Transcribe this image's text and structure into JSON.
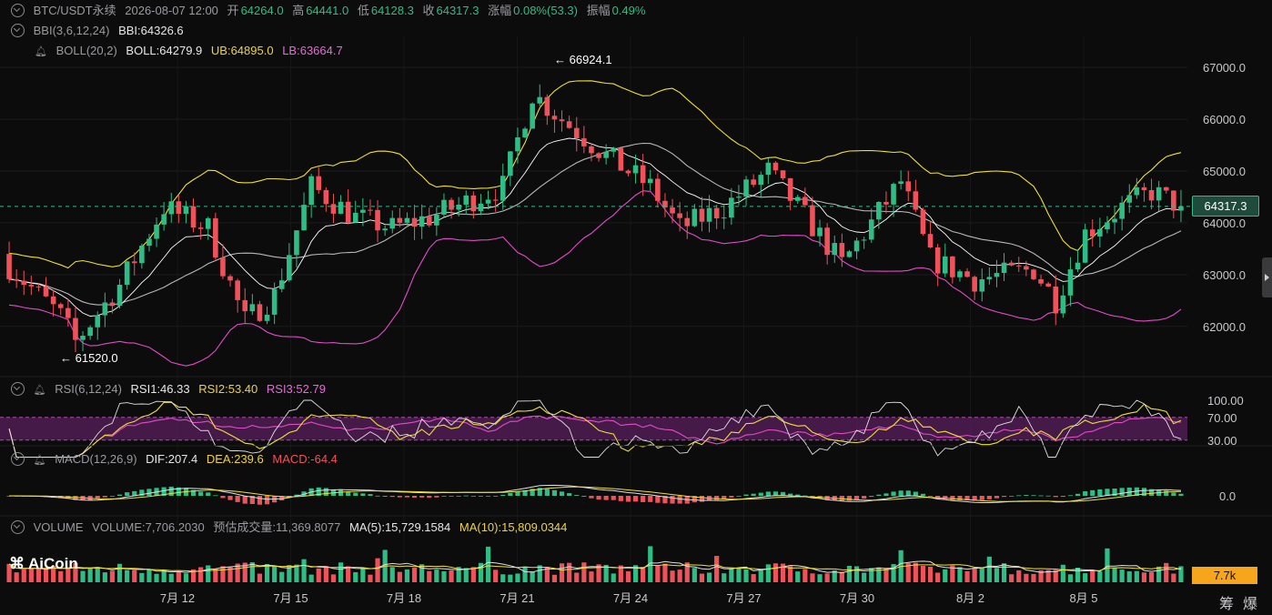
{
  "header": {
    "symbol": "BTC/USDT永续",
    "datetime": "2026-08-07 12:00",
    "open_label": "开",
    "open": "64264.0",
    "high_label": "高",
    "high": "64441.0",
    "low_label": "低",
    "low": "64128.3",
    "close_label": "收",
    "close": "64317.3",
    "change_label": "涨幅",
    "change": "0.08%(53.3)",
    "amp_label": "振幅",
    "amp": "0.49%"
  },
  "indicators": {
    "bbi_name": "BBI(3,6,12,24)",
    "bbi_value": "BBI:64326.6",
    "boll_name": "BOLL(20,2)",
    "boll_value": "BOLL:64279.9",
    "ub_value": "UB:64895.0",
    "lb_value": "LB:63664.7",
    "rsi_name": "RSI(6,12,24)",
    "rsi1": "RSI1:46.33",
    "rsi2": "RSI2:53.40",
    "rsi3": "RSI3:52.79",
    "macd_name": "MACD(12,26,9)",
    "dif": "DIF:207.4",
    "dea": "DEA:239.6",
    "macd": "MACD:-64.4",
    "volume_name": "VOLUME",
    "volume_value": "VOLUME:7,706.2030",
    "est_volume": "预估成交量:11,369.8077",
    "ma5": "MA(5):15,729.1584",
    "ma10": "MA(10):15,809.0344"
  },
  "annotations": {
    "high_mark": "← 66924.1",
    "low_mark": "← 61520.0"
  },
  "price_tag": "64317.3",
  "volume_tag": "7.7k",
  "logo": "AiCoin",
  "bottom_buttons": [
    "筹",
    "爆"
  ],
  "colors": {
    "up": "#2ebd85",
    "down": "#f0525b",
    "boll_mid": "#e9e9e9",
    "ub": "#f0e034",
    "lb": "#e14cc6",
    "bbi": "#ffffff",
    "rsi_band": "#5a1f5c"
  },
  "chart_data": [
    {
      "type": "candlestick",
      "name_hint": "price",
      "y_ticks": [
        "67000.0",
        "66000.0",
        "65000.0",
        "64000.0",
        "63000.0",
        "62000.0"
      ],
      "ylim": [
        61100,
        67600
      ],
      "x_ticks": [
        "7月 12",
        "7月 15",
        "7月 18",
        "7月 21",
        "7月 24",
        "7月 27",
        "7月 30",
        "8月 2",
        "8月 5"
      ],
      "start_price": 63400,
      "current": 64317.3,
      "series_names": [
        "BOLL",
        "UB",
        "LB",
        "BBI"
      ]
    },
    {
      "type": "line",
      "name_hint": "RSI",
      "y_ticks": [
        "100.00",
        "70.00",
        "30.00"
      ],
      "ylim": [
        20,
        100
      ],
      "band": [
        30,
        70
      ],
      "current": [
        46.33,
        53.4,
        52.79
      ]
    },
    {
      "type": "bar",
      "name_hint": "MACD",
      "y_ticks": [
        "0.0"
      ],
      "current": {
        "dif": 207.4,
        "dea": 239.6,
        "macd": -64.4
      }
    },
    {
      "type": "bar",
      "name_hint": "VOLUME",
      "current": 7706.203,
      "ma5": 15729.1584,
      "ma10": 15809.0344
    }
  ]
}
